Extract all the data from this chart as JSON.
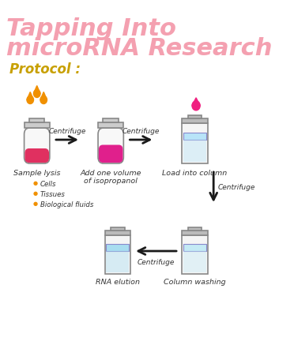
{
  "title_line1": "Tapping Into",
  "title_line2": "microRNA Research",
  "title_color": "#f4a0b0",
  "protocol_label": "Protocol :",
  "protocol_color": "#c8a000",
  "bg_color": "#ffffff",
  "arrow_color": "#1a1a1a",
  "centrifuge_color": "#555555",
  "tube_outline": "#aaaaaa",
  "tube_body": "#f5f5f5",
  "liquid_red": "#e03060",
  "liquid_pink": "#e0208c",
  "liquid_blue_light": "#b0e0f0",
  "drop_orange": "#f09000",
  "drop_pink": "#f02080",
  "step_labels": [
    "Centrifuge",
    "Centrifuge",
    "Centrifuge",
    "Centrifuge"
  ],
  "sample_lysis_label": "Sample lysis",
  "bullet_labels": [
    "Cells",
    "Tissues",
    "Biological fluids"
  ],
  "isopropanol_label": "Add one volume\nof isopropanol",
  "column_label": "Load into column",
  "rna_label": "RNA elution",
  "wash_label": "Column washing"
}
